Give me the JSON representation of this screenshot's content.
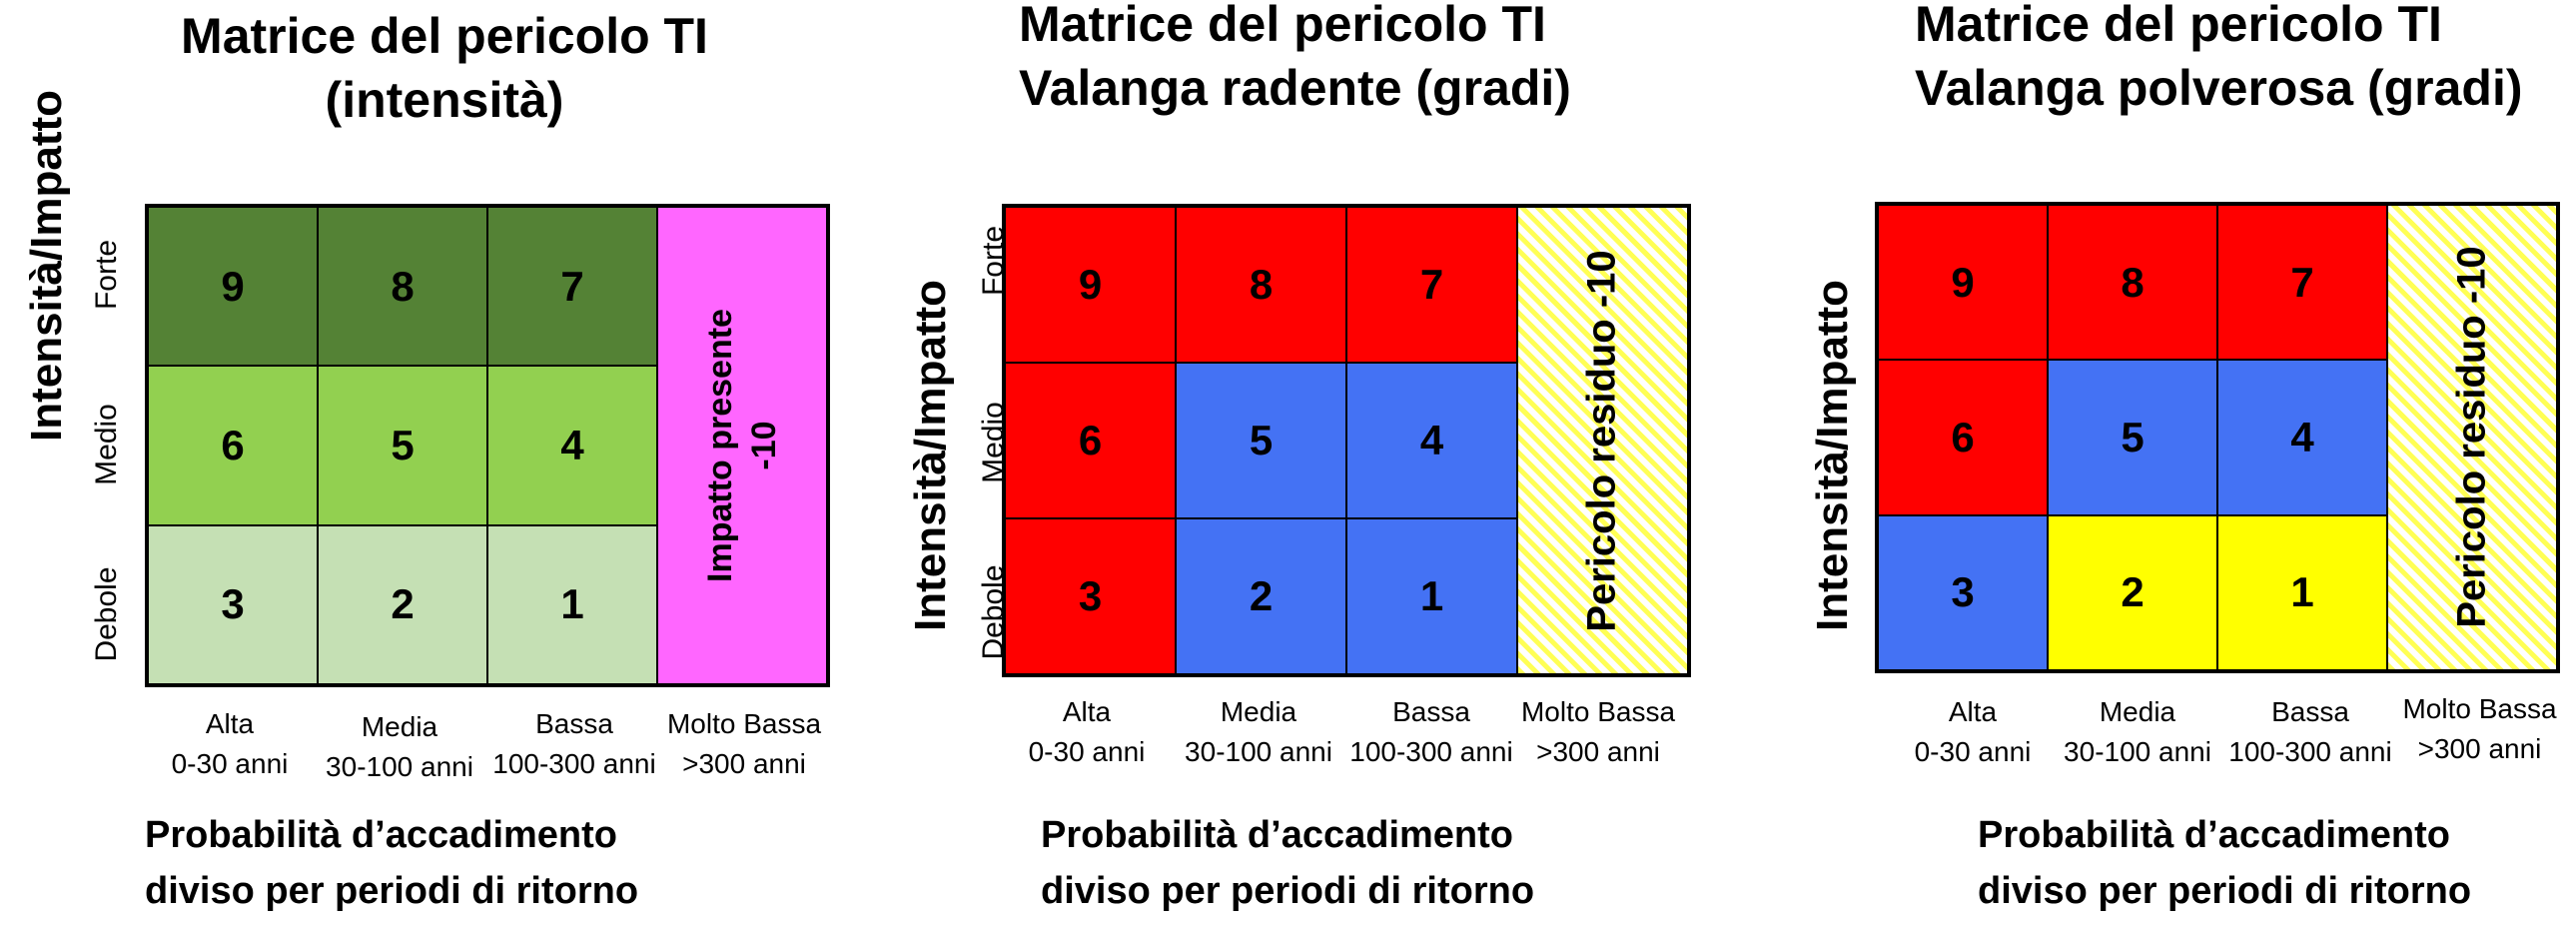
{
  "panels": [
    {
      "title_lines": [
        "Matrice  del pericolo TI",
        "(intensità)"
      ],
      "y_label": "Intensità/Impatto",
      "row_labels": [
        "Forte",
        "Medio",
        "Debole"
      ],
      "cells": [
        [
          "9",
          "8",
          "7"
        ],
        [
          "6",
          "5",
          "4"
        ],
        [
          "3",
          "2",
          "1"
        ]
      ],
      "cell_colors": [
        [
          "#548235",
          "#548235",
          "#548235"
        ],
        [
          "#92d050",
          "#92d050",
          "#92d050"
        ],
        [
          "#c5e0b4",
          "#c5e0b4",
          "#c5e0b4"
        ]
      ],
      "last_col_text": [
        "Impatto presente",
        "-10"
      ],
      "last_col_color": "#ff66ff",
      "col_heads": [
        [
          "Alta",
          "0-30 anni"
        ],
        [
          "Media",
          "30-100 anni"
        ],
        [
          "Bassa",
          "100-300 anni"
        ],
        [
          "Molto Bassa",
          ">300 anni"
        ]
      ],
      "footer_lines": [
        "Probabilità d’accadimento",
        "diviso per periodi di ritorno"
      ]
    },
    {
      "title_lines": [
        "Matrice  del pericolo TI",
        "Valanga radente (gradi)"
      ],
      "y_label": "Intensità/Impatto",
      "row_labels": [
        "Forte",
        "Medio",
        "Debole"
      ],
      "cells": [
        [
          "9",
          "8",
          "7"
        ],
        [
          "6",
          "5",
          "4"
        ],
        [
          "3",
          "2",
          "1"
        ]
      ],
      "cell_colors": [
        [
          "#ff0000",
          "#ff0000",
          "#ff0000"
        ],
        [
          "#ff0000",
          "#4472f4",
          "#4472f4"
        ],
        [
          "#ff0000",
          "#4472f4",
          "#4472f4"
        ]
      ],
      "last_col_text": [
        "Pericolo residuo -10"
      ],
      "last_col_color": "hatch-yellow",
      "col_heads": [
        [
          "Alta",
          "0-30 anni"
        ],
        [
          "Media",
          "30-100 anni"
        ],
        [
          "Bassa",
          "100-300 anni"
        ],
        [
          "Molto Bassa",
          ">300 anni"
        ]
      ],
      "footer_lines": [
        "Probabilità d’accadimento",
        "diviso per periodi di ritorno"
      ]
    },
    {
      "title_lines": [
        "Matrice  del pericolo TI",
        "Valanga polverosa (gradi)"
      ],
      "y_label": "Intensità/Impatto",
      "row_labels": [
        "Forte",
        "Medio",
        "Debole"
      ],
      "cells": [
        [
          "9",
          "8",
          "7"
        ],
        [
          "6",
          "5",
          "4"
        ],
        [
          "3",
          "2",
          "1"
        ]
      ],
      "cell_colors": [
        [
          "#ff0000",
          "#ff0000",
          "#ff0000"
        ],
        [
          "#ff0000",
          "#4472f4",
          "#4472f4"
        ],
        [
          "#4472f4",
          "#ffff00",
          "#ffff00"
        ]
      ],
      "last_col_text": [
        "Pericolo residuo -10"
      ],
      "last_col_color": "hatch-yellow",
      "col_heads": [
        [
          "Alta",
          "0-30 anni"
        ],
        [
          "Media",
          "30-100 anni"
        ],
        [
          "Bassa",
          "100-300 anni"
        ],
        [
          "Molto Bassa",
          ">300 anni"
        ]
      ],
      "footer_lines": [
        "Probabilità d’accadimento",
        "diviso per periodi di ritorno"
      ]
    }
  ]
}
